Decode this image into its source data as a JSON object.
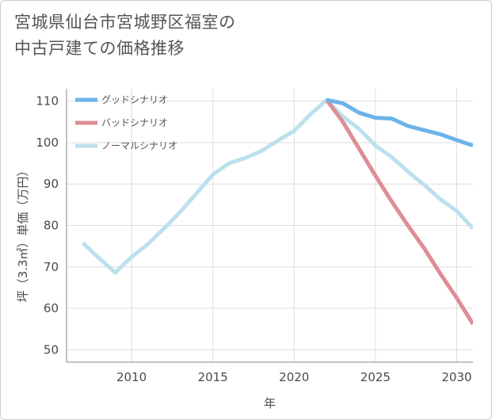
{
  "title_lines": [
    "宮城県仙台市宮城野区福室の",
    "中古戸建ての価格推移"
  ],
  "colors": {
    "good": "#6ab4ea",
    "bad": "#dd8e95",
    "normal": "#bde0ee",
    "grid": "#dddddd",
    "axis": "#888888"
  },
  "chart_data": {
    "type": "line",
    "xlabel": "年",
    "ylabel": "坪（3.3㎡）単価（万円）",
    "xlim": [
      2006,
      2031
    ],
    "ylim": [
      47,
      113
    ],
    "x_ticks": [
      2010,
      2015,
      2020,
      2025,
      2030
    ],
    "y_ticks": [
      50,
      60,
      70,
      80,
      90,
      100,
      110
    ],
    "legend_position": "top-left",
    "grid": true,
    "series": [
      {
        "name": "グッドシナリオ",
        "color_key": "good",
        "x": [
          2022,
          2023,
          2024,
          2025,
          2026,
          2027,
          2028,
          2029,
          2030,
          2031
        ],
        "y": [
          110.3,
          109.5,
          107.2,
          106.0,
          105.8,
          104.0,
          103.0,
          102.0,
          100.6,
          99.3
        ]
      },
      {
        "name": "バッドシナリオ",
        "color_key": "bad",
        "x": [
          2022,
          2023,
          2024,
          2025,
          2026,
          2027,
          2028,
          2029,
          2030,
          2031
        ],
        "y": [
          110.3,
          105.0,
          98.5,
          92.0,
          85.8,
          80.0,
          74.5,
          68.3,
          62.5,
          56.2
        ]
      },
      {
        "name": "ノーマルシナリオ",
        "color_key": "normal",
        "x": [
          2007,
          2008,
          2009,
          2010,
          2011,
          2012,
          2013,
          2014,
          2015,
          2016,
          2017,
          2018,
          2019,
          2020,
          2021,
          2022,
          2023,
          2024,
          2025,
          2026,
          2027,
          2028,
          2029,
          2030,
          2031
        ],
        "y": [
          75.8,
          72.1,
          68.6,
          72.4,
          75.5,
          79.3,
          83.3,
          87.8,
          92.3,
          95.0,
          96.3,
          98.0,
          100.5,
          102.8,
          106.8,
          110.3,
          106.3,
          103.3,
          99.3,
          96.5,
          93.0,
          89.8,
          86.3,
          83.5,
          79.3
        ]
      }
    ]
  }
}
